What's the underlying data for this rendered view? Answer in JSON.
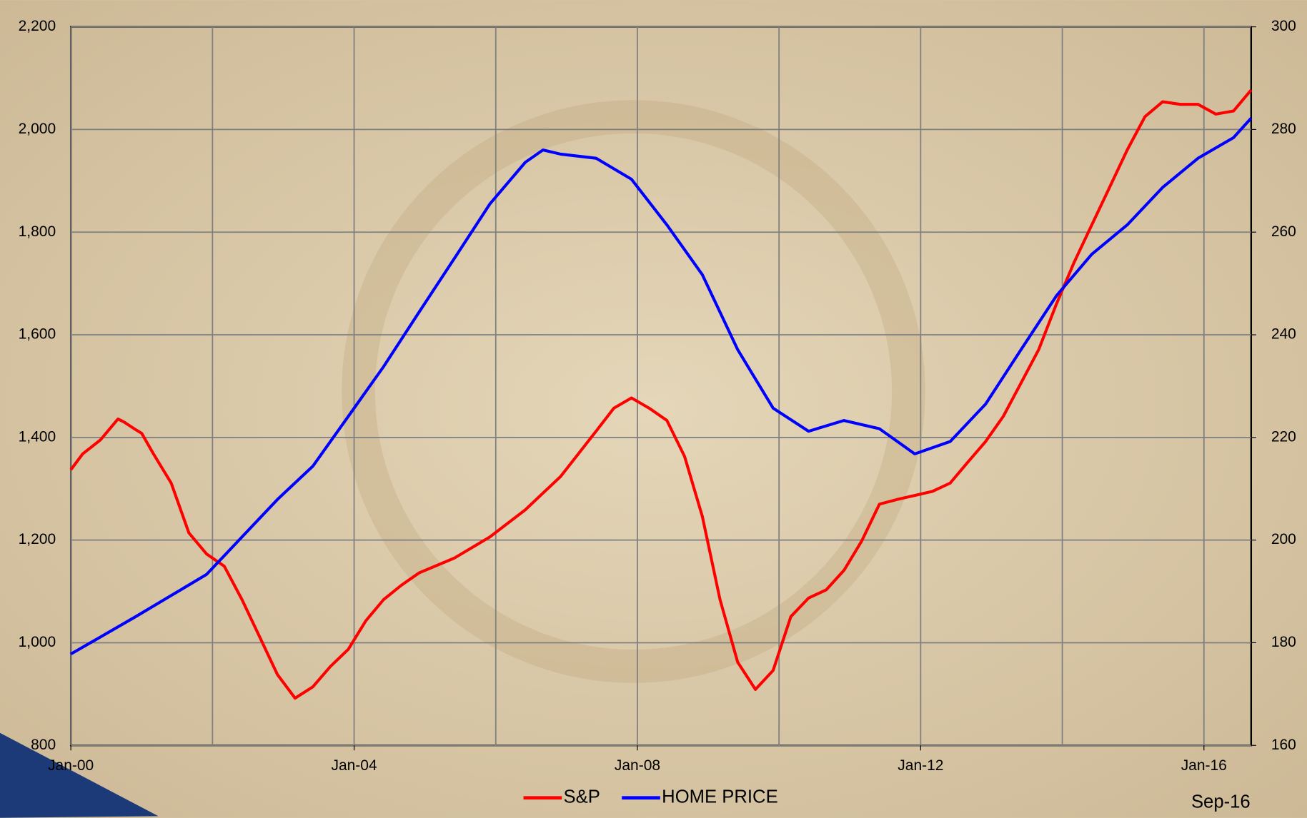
{
  "chart_data": {
    "type": "line",
    "annotation": "Sep-16",
    "xlim": [
      "2000-01",
      "2016-09"
    ],
    "xticks": [
      {
        "value": "2000-01",
        "label": "Jan-00"
      },
      {
        "value": "2004-01",
        "label": "Jan-04"
      },
      {
        "value": "2008-01",
        "label": "Jan-08"
      },
      {
        "value": "2012-01",
        "label": "Jan-12"
      },
      {
        "value": "2016-01",
        "label": "Jan-16"
      }
    ],
    "xgrid": [
      "2000-01",
      "2002-01",
      "2004-01",
      "2006-01",
      "2008-01",
      "2010-01",
      "2012-01",
      "2014-01",
      "2016-01"
    ],
    "ylim": [
      800,
      2200
    ],
    "yticks": [
      {
        "value": 800,
        "label": "800"
      },
      {
        "value": 1000,
        "label": "1,000"
      },
      {
        "value": 1200,
        "label": "1,200"
      },
      {
        "value": 1400,
        "label": "1,400"
      },
      {
        "value": 1600,
        "label": "1,600"
      },
      {
        "value": 1800,
        "label": "1,800"
      },
      {
        "value": 2000,
        "label": "2,000"
      },
      {
        "value": 2200,
        "label": "2,200"
      }
    ],
    "y2lim": [
      160,
      300
    ],
    "y2ticks": [
      160,
      180,
      200,
      220,
      240,
      260,
      280,
      300
    ],
    "grid": true,
    "series": [
      {
        "name": "S&P",
        "color": "#ff0000",
        "x": [
          "2000-01",
          "2000-03",
          "2000-06",
          "2000-09",
          "2000-10",
          "2000-12",
          "2001-01",
          "2001-03",
          "2001-06",
          "2001-09",
          "2001-12",
          "2002-03",
          "2002-06",
          "2002-09",
          "2002-12",
          "2003-03",
          "2003-06",
          "2003-09",
          "2003-12",
          "2004-03",
          "2004-06",
          "2004-09",
          "2004-12",
          "2005-06",
          "2005-12",
          "2006-06",
          "2006-12",
          "2007-06",
          "2007-09",
          "2007-12",
          "2008-03",
          "2008-06",
          "2008-09",
          "2008-12",
          "2009-03",
          "2009-06",
          "2009-09",
          "2009-12",
          "2010-03",
          "2010-06",
          "2010-09",
          "2010-12",
          "2011-03",
          "2011-06",
          "2011-09",
          "2011-12",
          "2012-03",
          "2012-06",
          "2012-09",
          "2012-12",
          "2013-03",
          "2013-06",
          "2013-09",
          "2013-12",
          "2014-03",
          "2014-06",
          "2014-09",
          "2014-12",
          "2015-03",
          "2015-06",
          "2015-09",
          "2015-12",
          "2016-03",
          "2016-06",
          "2016-09"
        ],
        "values": [
          1337,
          1368,
          1395,
          1436,
          1430,
          1415,
          1408,
          1368,
          1311,
          1214,
          1173,
          1149,
          1084,
          1011,
          938,
          892,
          914,
          954,
          987,
          1043,
          1084,
          1112,
          1136,
          1165,
          1206,
          1259,
          1324,
          1412,
          1457,
          1477,
          1457,
          1433,
          1363,
          1246,
          1084,
          962,
          909,
          946,
          1051,
          1087,
          1103,
          1141,
          1198,
          1270,
          1279,
          1287,
          1295,
          1311,
          1352,
          1392,
          1441,
          1506,
          1571,
          1660,
          1741,
          1814,
          1887,
          1960,
          2025,
          2054,
          2049,
          2049,
          2030,
          2036,
          2077
        ]
      },
      {
        "name": "HOME PRICE",
        "color": "#0000ff",
        "axis": "y2",
        "x": [
          "2000-01",
          "2000-06",
          "2000-12",
          "2001-06",
          "2001-12",
          "2002-06",
          "2002-12",
          "2003-06",
          "2003-12",
          "2004-06",
          "2004-12",
          "2005-06",
          "2005-12",
          "2006-06",
          "2006-09",
          "2006-12",
          "2007-06",
          "2007-12",
          "2008-06",
          "2008-12",
          "2009-06",
          "2009-12",
          "2010-06",
          "2010-12",
          "2011-06",
          "2011-12",
          "2012-06",
          "2012-12",
          "2013-06",
          "2013-12",
          "2014-06",
          "2014-12",
          "2015-06",
          "2015-12",
          "2016-06",
          "2016-09"
        ],
        "values": [
          177.8,
          181.1,
          185.1,
          189.2,
          193.3,
          200.6,
          207.9,
          214.4,
          224.1,
          233.8,
          244.4,
          254.9,
          265.5,
          273.6,
          276.0,
          275.2,
          274.4,
          270.3,
          261.4,
          251.7,
          237.1,
          225.7,
          221.2,
          223.3,
          221.7,
          216.8,
          219.2,
          226.5,
          237.1,
          247.6,
          255.7,
          261.4,
          268.7,
          274.4,
          278.4,
          282.2
        ]
      }
    ]
  }
}
